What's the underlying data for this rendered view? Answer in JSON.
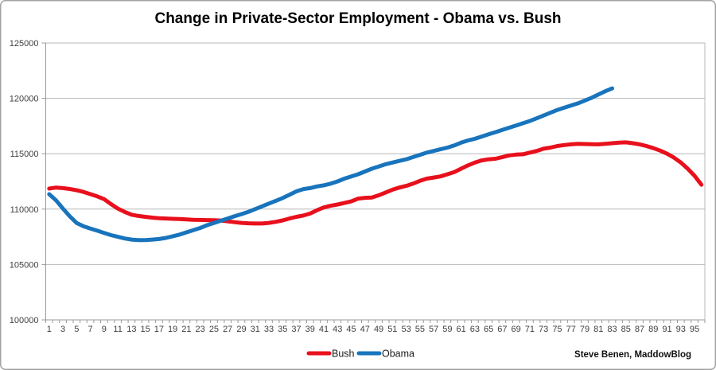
{
  "page": {
    "attribution": "Steve Benen, MaddowBlog"
  },
  "colors": {
    "bush_line": "#e8101c",
    "obama_line": "#1874bc",
    "gridline": "#b8b8b8",
    "axis": "#9a9a9a",
    "tick_text": "#3f3f3f",
    "outer_border": "#a3a3a3",
    "background": "#ffffff"
  },
  "chart_data": {
    "type": "line",
    "title": "Change in Private-Sector Employment - Obama vs. Bush",
    "xlabel": "",
    "ylabel": "",
    "x_axis": {
      "count": 96,
      "tick_labels": [
        1,
        3,
        5,
        7,
        9,
        11,
        13,
        15,
        17,
        19,
        21,
        23,
        25,
        27,
        29,
        31,
        33,
        35,
        37,
        39,
        41,
        43,
        45,
        47,
        49,
        51,
        53,
        55,
        57,
        59,
        61,
        63,
        65,
        67,
        69,
        71,
        73,
        75,
        77,
        79,
        81,
        83,
        85,
        87,
        89,
        91,
        93,
        95
      ]
    },
    "y_axis": {
      "min": 100000,
      "max": 125000,
      "step": 5000,
      "tick_labels": [
        "100000",
        "105000",
        "110000",
        "115000",
        "120000",
        "125000"
      ]
    },
    "grid": "horizontal",
    "legend_position": "bottom-center",
    "series": [
      {
        "name": "Bush",
        "color": "#e8101c",
        "values": [
          111850,
          111950,
          111900,
          111820,
          111700,
          111550,
          111350,
          111150,
          110900,
          110450,
          110050,
          109750,
          109500,
          109380,
          109300,
          109230,
          109180,
          109150,
          109120,
          109100,
          109070,
          109040,
          109020,
          109010,
          109000,
          108970,
          108900,
          108820,
          108760,
          108720,
          108700,
          108700,
          108760,
          108850,
          108980,
          109150,
          109300,
          109420,
          109600,
          109900,
          110150,
          110300,
          110420,
          110550,
          110700,
          110950,
          111020,
          111050,
          111250,
          111500,
          111750,
          111950,
          112100,
          112300,
          112550,
          112750,
          112850,
          112950,
          113150,
          113350,
          113650,
          113950,
          114200,
          114400,
          114500,
          114550,
          114700,
          114850,
          114920,
          114950,
          115100,
          115250,
          115450,
          115550,
          115700,
          115780,
          115850,
          115900,
          115880,
          115860,
          115850,
          115900,
          115950,
          116000,
          116030,
          115950,
          115850,
          115700,
          115500,
          115280,
          115000,
          114650,
          114200,
          113650,
          113000,
          112200
        ]
      },
      {
        "name": "Obama",
        "color": "#1874bc",
        "values": [
          111350,
          110800,
          110050,
          109350,
          108750,
          108450,
          108250,
          108050,
          107850,
          107650,
          107500,
          107350,
          107250,
          107200,
          107200,
          107250,
          107300,
          107400,
          107550,
          107700,
          107900,
          108100,
          108300,
          108550,
          108750,
          108950,
          109150,
          109350,
          109550,
          109750,
          110000,
          110250,
          110500,
          110750,
          111000,
          111300,
          111600,
          111800,
          111900,
          112050,
          112150,
          112300,
          112500,
          112750,
          112950,
          113150,
          113400,
          113650,
          113850,
          114050,
          114200,
          114350,
          114500,
          114700,
          114900,
          115100,
          115250,
          115400,
          115550,
          115750,
          116000,
          116200,
          116350,
          116550,
          116750,
          116950,
          117150,
          117350,
          117550,
          117750,
          117950,
          118200,
          118450,
          118700,
          118950,
          119150,
          119350,
          119550,
          119800,
          120050,
          120350,
          120650,
          120900
        ]
      }
    ]
  }
}
